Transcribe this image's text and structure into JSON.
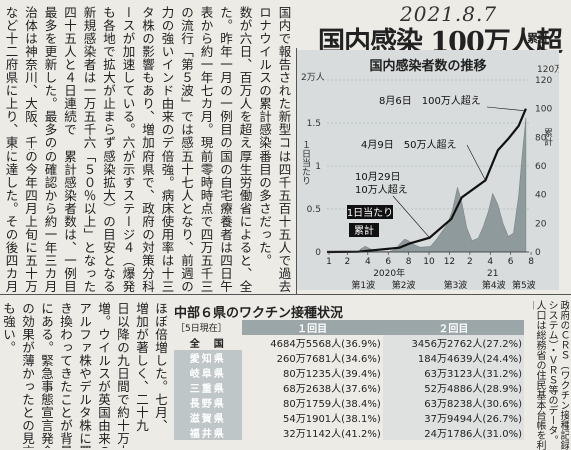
{
  "date_stamp": "2021.8.7",
  "headline": "国内感染 100万人超",
  "kicker": "累計",
  "article": {
    "top_columns": [
      "国内で報告された新型コ",
      "ロナウイルスの累計感染者",
      "数が六日、百万人を超え",
      "た。昨年一月の一例目の発",
      "表から約一年七カ月。現在",
      "の流行「第５波」では感染",
      "力の強いインド由来のデル",
      "タ株の影響もあり、増加ペ",
      "ースが加速している。六日",
      "も各地で拡大が止まらず、",
      "新規感染者は一万五千六百",
      "四十五人と４日連続で",
      "最多を更新した。最多の自",
      "治体は神奈川、大阪、千葉",
      "など十二府県に上り、東京",
      "は四千五百十五人で過去二",
      "番目の多さだった。",
      "厚生労働省によると、全",
      "国の自宅療養者は四日午",
      "前零時時点で四万五千三百",
      "五十七人となり、前週の二",
      "倍強。病床使用率は十三都",
      "府県で、政府の対策分科会",
      "が示すステージ４（爆発的",
      "感染拡大）の目安となる",
      "「５０％以上」となった。",
      "累計感染者数は、一例目",
      "の確認から約一年三カ月後",
      "の今年四月上旬に五十万人",
      "に達した。その後四カ月で"
    ],
    "bottom_columns": [
      "ほぼ倍増した。七月、",
      "増加が著しく、二十九",
      "日以降の九日間で約十万人",
      "増。ウイルスが英国由来の",
      "アルファ株やデルタ株に置",
      "き換わってきたことが背景",
      "にある。緊急事態宣言発令",
      "の効果が薄かったとの見方",
      "も強い。"
    ]
  },
  "chart_data": {
    "type": "bar+line",
    "title": "国内感染者数の推移",
    "left_axis_unit": "2万人",
    "left_axis_label": "１日当たり",
    "right_axis_unit": "120万人",
    "right_axis_label": "累計",
    "left_ticks": [
      "2",
      "1.5",
      "1",
      "0.5",
      "0"
    ],
    "right_ticks": [
      "120",
      "100",
      "80",
      "60",
      "40",
      "20",
      "0"
    ],
    "ylim_daily": [
      0,
      20000
    ],
    "ylim_cumulative": [
      0,
      1200000
    ],
    "month_labels": [
      "1",
      "2",
      "4",
      "6",
      "8",
      "10",
      "12",
      "2",
      "4",
      "6",
      "8"
    ],
    "year_labels": [
      "2020年",
      "21"
    ],
    "wave_labels": [
      "第1波",
      "第2波",
      "第3波",
      "第4波",
      "第5波"
    ],
    "legend": [
      "1日当たり",
      "累計"
    ],
    "annotations": [
      {
        "text": "8月6日　100万人超え",
        "month": 19.2,
        "value": 1000000
      },
      {
        "text": "4月9日　50万人超え",
        "month": 15.3,
        "value": 500000
      },
      {
        "text": "10月29日",
        "month": 9.9,
        "value": 100000
      },
      {
        "text": "10万人超え",
        "month": 9.9,
        "value": 100000
      }
    ],
    "daily_series": [
      {
        "m": 3.2,
        "v": 300
      },
      {
        "m": 3.7,
        "v": 650
      },
      {
        "m": 4.2,
        "v": 350
      },
      {
        "m": 5.0,
        "v": 60
      },
      {
        "m": 6.0,
        "v": 50
      },
      {
        "m": 6.6,
        "v": 300
      },
      {
        "m": 7.0,
        "v": 900
      },
      {
        "m": 7.5,
        "v": 1500
      },
      {
        "m": 7.8,
        "v": 1350
      },
      {
        "m": 8.3,
        "v": 900
      },
      {
        "m": 9.0,
        "v": 550
      },
      {
        "m": 10.0,
        "v": 650
      },
      {
        "m": 10.6,
        "v": 1500
      },
      {
        "m": 11.0,
        "v": 2200
      },
      {
        "m": 11.6,
        "v": 3200
      },
      {
        "m": 12.1,
        "v": 4800
      },
      {
        "m": 12.6,
        "v": 7500
      },
      {
        "m": 13.0,
        "v": 5800
      },
      {
        "m": 13.5,
        "v": 2800
      },
      {
        "m": 14.0,
        "v": 1300
      },
      {
        "m": 14.6,
        "v": 1600
      },
      {
        "m": 15.1,
        "v": 3000
      },
      {
        "m": 15.6,
        "v": 4800
      },
      {
        "m": 16.0,
        "v": 6800
      },
      {
        "m": 16.5,
        "v": 5500
      },
      {
        "m": 17.0,
        "v": 3300
      },
      {
        "m": 17.5,
        "v": 1800
      },
      {
        "m": 18.0,
        "v": 2200
      },
      {
        "m": 18.5,
        "v": 6500
      },
      {
        "m": 18.9,
        "v": 12000
      },
      {
        "m": 19.2,
        "v": 15600
      }
    ],
    "cumulative_series": [
      {
        "m": 0,
        "v": 0
      },
      {
        "m": 3,
        "v": 2000
      },
      {
        "m": 5,
        "v": 16000
      },
      {
        "m": 7,
        "v": 30000
      },
      {
        "m": 8,
        "v": 60000
      },
      {
        "m": 9.9,
        "v": 100000
      },
      {
        "m": 12,
        "v": 230000
      },
      {
        "m": 13,
        "v": 380000
      },
      {
        "m": 15.3,
        "v": 500000
      },
      {
        "m": 16.5,
        "v": 710000
      },
      {
        "m": 17.5,
        "v": 790000
      },
      {
        "m": 18.5,
        "v": 880000
      },
      {
        "m": 19.2,
        "v": 1000000
      }
    ]
  },
  "vaccine": {
    "title": "中部６県のワクチン接種状況",
    "as_of": "［5日現在］",
    "col1": "１回目",
    "col2": "２回目",
    "rows": [
      {
        "pref": "全　国",
        "d1": "4684万5568人(36.9%)",
        "d2": "3456万2762人(27.2%)"
      },
      {
        "pref": "愛知県",
        "d1": "260万7681人(34.6%)",
        "d2": "184万4639人(24.4%)"
      },
      {
        "pref": "岐阜県",
        "d1": "80万1235人(39.4%)",
        "d2": "63万3123人(31.2%)"
      },
      {
        "pref": "三重県",
        "d1": "68万2638人(37.6%)",
        "d2": "52万4886人(28.9%)"
      },
      {
        "pref": "長野県",
        "d1": "80万1759人(38.4%)",
        "d2": "63万8238人(30.6%)"
      },
      {
        "pref": "滋賀県",
        "d1": "54万1901人(38.1%)",
        "d2": "37万9494人(26.7%)"
      },
      {
        "pref": "福井県",
        "d1": "32万1142人(41.2%)",
        "d2": "24万1786人(31.0%)"
      }
    ]
  },
  "side_note": "政府のＣＲＳ（ワクチン接種記録システム）・ＶＲＳ等のデータ。人口は総務省の住民基本台帳を利用"
}
